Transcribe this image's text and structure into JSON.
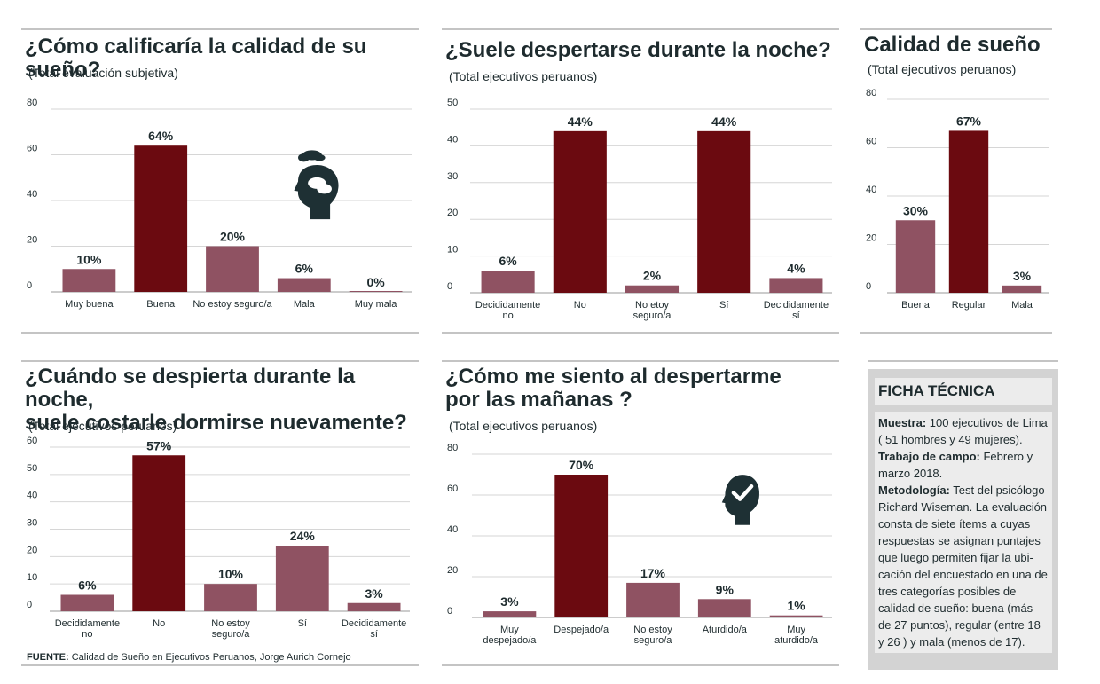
{
  "colors": {
    "accent": "#6b0a10",
    "muted": "#8f5262",
    "text": "#1e2b2e",
    "icon": "#1e3034"
  },
  "charts": [
    {
      "title": "¿Cómo calificaría la calidad de su sueño?",
      "subtitle": "(Total evaluación subjetiva)",
      "chart_data": {
        "type": "bar",
        "title": "¿Cómo calificaría la calidad de su sueño?",
        "categories": [
          [
            "Muy buena"
          ],
          [
            "Buena"
          ],
          [
            "No estoy seguro/a"
          ],
          [
            "Mala"
          ],
          [
            "Muy mala"
          ]
        ],
        "values": [
          10,
          64,
          20,
          6,
          0
        ],
        "value_labels": [
          "10%",
          "64%",
          "20%",
          "6%",
          "0%"
        ],
        "highlight": [
          false,
          true,
          false,
          false,
          false
        ],
        "ylim": [
          0,
          80
        ],
        "yticks": [
          0,
          20,
          40,
          60,
          80
        ],
        "grid": true,
        "xlabel": "",
        "ylabel": ""
      },
      "icon": "head-clouds-icon"
    },
    {
      "title": "¿Suele despertarse durante la noche?",
      "subtitle": "(Total ejecutivos peruanos)",
      "chart_data": {
        "type": "bar",
        "title": "¿Suele despertarse durante la noche?",
        "categories": [
          [
            "Decididamente",
            "no"
          ],
          [
            "No"
          ],
          [
            "No etoy",
            "seguro/a"
          ],
          [
            "Sí"
          ],
          [
            "Decididamente",
            "sí"
          ]
        ],
        "values": [
          6,
          44,
          2,
          44,
          4
        ],
        "value_labels": [
          "6%",
          "44%",
          "2%",
          "44%",
          "4%"
        ],
        "highlight": [
          false,
          true,
          false,
          true,
          false
        ],
        "ylim": [
          0,
          50
        ],
        "yticks": [
          0,
          10,
          20,
          30,
          40,
          50
        ],
        "grid": true,
        "xlabel": "",
        "ylabel": ""
      }
    },
    {
      "title": "Calidad de sueño",
      "subtitle": "(Total ejecutivos peruanos)",
      "chart_data": {
        "type": "bar",
        "title": "Calidad de sueño",
        "categories": [
          [
            "Buena"
          ],
          [
            "Regular"
          ],
          [
            "Mala"
          ]
        ],
        "values": [
          30,
          67,
          3
        ],
        "value_labels": [
          "30%",
          "67%",
          "3%"
        ],
        "highlight": [
          false,
          true,
          false
        ],
        "ylim": [
          0,
          80
        ],
        "yticks": [
          0,
          20,
          40,
          60,
          80
        ],
        "grid": true,
        "xlabel": "",
        "ylabel": ""
      }
    },
    {
      "title": "¿Cuándo se despierta durante la noche,\nsuele costarle dormirse nuevamente?",
      "subtitle": "(Total ejecutivos peruanos)",
      "chart_data": {
        "type": "bar",
        "title": "¿Cuándo se despierta durante la noche, suele costarle dormirse nuevamente?",
        "categories": [
          [
            "Decididamente",
            "no"
          ],
          [
            "No"
          ],
          [
            "No estoy",
            "seguro/a"
          ],
          [
            "Sí"
          ],
          [
            "Decididamente",
            "sí"
          ]
        ],
        "values": [
          6,
          57,
          10,
          24,
          3
        ],
        "value_labels": [
          "6%",
          "57%",
          "10%",
          "24%",
          "3%"
        ],
        "highlight": [
          false,
          true,
          false,
          false,
          false
        ],
        "ylim": [
          0,
          60
        ],
        "yticks": [
          0,
          10,
          20,
          30,
          40,
          50,
          60
        ],
        "grid": true,
        "xlabel": "",
        "ylabel": ""
      }
    },
    {
      "title": "¿Cómo me siento al despertarme\npor las mañanas  ?",
      "subtitle": "(Total ejecutivos peruanos)",
      "chart_data": {
        "type": "bar",
        "title": "¿Cómo me siento al despertarme por las mañanas ?",
        "categories": [
          [
            "Muy",
            "despejado/a"
          ],
          [
            "Despejado/a"
          ],
          [
            "No estoy",
            "seguro/a"
          ],
          [
            "Aturdido/a"
          ],
          [
            "Muy",
            "aturdido/a"
          ]
        ],
        "values": [
          3,
          70,
          17,
          9,
          1
        ],
        "value_labels": [
          "3%",
          "70%",
          "17%",
          "9%",
          "1%"
        ],
        "highlight": [
          false,
          true,
          false,
          false,
          false
        ],
        "ylim": [
          0,
          80
        ],
        "yticks": [
          0,
          20,
          40,
          60,
          80
        ],
        "grid": true,
        "xlabel": "",
        "ylabel": ""
      },
      "icon": "head-checkmark-icon"
    }
  ],
  "ficha": {
    "title": "FICHA TÉCNICA",
    "muestra_label": "Muestra:",
    "muestra_text": " 100 ejecutivos de Lima ( 51 hombres y 49 mujeres).",
    "trabajo_label": "Trabajo de campo:",
    "trabajo_text": " Febrero y marzo 2018.",
    "metodologia_label": "Metodología:",
    "metodologia_text": " Test del psicólogo Richard Wiseman. La evaluación consta de siete ítems a cuyas respuestas se asignan puntajes que luego permiten fijar la ubi-cación del encuestado en una de tres categorías posibles de calidad de sueño: buena (más de 27 puntos), regular (entre 18 y 26 ) y mala (menos de 17)."
  },
  "source": {
    "label": "FUENTE:",
    "text": " Calidad de Sueño en Ejecutivos Peruanos, Jorge Aurich Cornejo"
  }
}
